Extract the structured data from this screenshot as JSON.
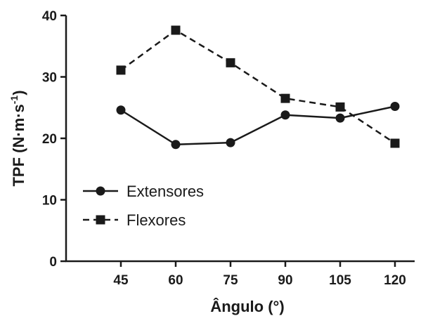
{
  "chart_data": {
    "type": "line",
    "xlabel": "Ângulo (°)",
    "ylabel_main": "TPF (N·m·s",
    "ylabel_sup": "-1",
    "ylabel_close": ")",
    "ylim": [
      0,
      40
    ],
    "yticks": [
      "0",
      "10",
      "20",
      "30",
      "40"
    ],
    "x": [
      "45",
      "60",
      "75",
      "90",
      "105",
      "120"
    ],
    "series": [
      {
        "name": "Extensores",
        "marker": "circle",
        "dash": "solid",
        "values": [
          24.6,
          19.0,
          19.3,
          23.8,
          23.3,
          25.2
        ]
      },
      {
        "name": "Flexores",
        "marker": "square",
        "dash": "dashed",
        "values": [
          31.1,
          37.6,
          32.3,
          26.5,
          25.1,
          19.2
        ]
      }
    ],
    "legend": "bottom-left",
    "grid": false,
    "color": "#1a1a1a"
  }
}
